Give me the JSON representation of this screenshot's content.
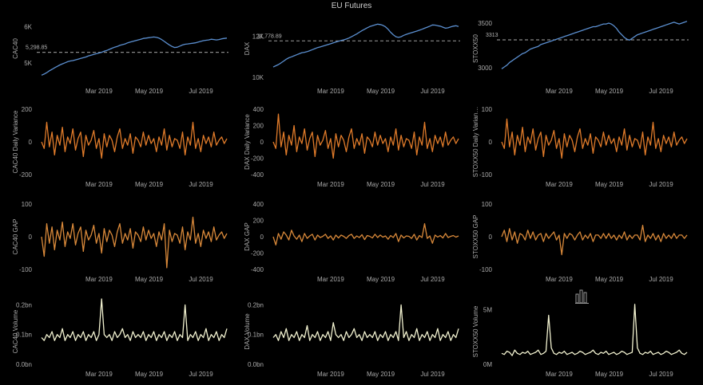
{
  "page": {
    "title": "EU Futures"
  },
  "colors": {
    "price": "#5b8fd0",
    "variance": "#e07b2a",
    "gap": "#d9893a",
    "volume": "#f2f2d0",
    "ref": "#8a8a8a"
  },
  "icons": {
    "toolbar": "bar-chart-icon"
  },
  "chart_data": [
    {
      "id": "cac40-price",
      "type": "line",
      "ylabel": "CAC40",
      "yticks": [
        "5K",
        "6K"
      ],
      "ytick_values": [
        5000,
        6000
      ],
      "ylim": [
        4500,
        6300
      ],
      "ref_line": 5298.85,
      "ref_label": "5,298.85",
      "xticks": [
        "Mar 2019",
        "May 2019",
        "Jul 2019"
      ],
      "x_start": "2019-01-02",
      "x_end": "2019-07-31",
      "series_color": "price",
      "values": [
        4670,
        4700,
        4740,
        4790,
        4830,
        4870,
        4910,
        4950,
        4980,
        5010,
        5040,
        5060,
        5070,
        5090,
        5110,
        5130,
        5150,
        5170,
        5200,
        5220,
        5240,
        5260,
        5280,
        5300,
        5330,
        5350,
        5380,
        5410,
        5440,
        5460,
        5490,
        5510,
        5530,
        5560,
        5580,
        5600,
        5620,
        5640,
        5660,
        5680,
        5690,
        5700,
        5710,
        5720,
        5710,
        5690,
        5650,
        5600,
        5550,
        5500,
        5460,
        5430,
        5440,
        5470,
        5500,
        5520,
        5530,
        5540,
        5550,
        5560,
        5580,
        5600,
        5620,
        5630,
        5640,
        5660,
        5650,
        5640,
        5650,
        5670,
        5680,
        5690
      ]
    },
    {
      "id": "dax-price",
      "type": "line",
      "ylabel": "DAX",
      "yticks": [
        "10K",
        "12K"
      ],
      "ytick_values": [
        10000,
        12000
      ],
      "ylim": [
        9800,
        13000
      ],
      "ref_line": 11778.89,
      "ref_label": "11,778.89",
      "xticks": [
        "Mar 2019",
        "May 2019",
        "Jul 2019"
      ],
      "x_start": "2019-01-02",
      "x_end": "2019-07-31",
      "series_color": "price",
      "values": [
        10500,
        10560,
        10620,
        10700,
        10790,
        10880,
        10950,
        11000,
        11050,
        11100,
        11150,
        11200,
        11220,
        11250,
        11300,
        11350,
        11400,
        11450,
        11480,
        11520,
        11560,
        11600,
        11640,
        11680,
        11720,
        11760,
        11800,
        11830,
        11870,
        11920,
        11980,
        12050,
        12120,
        12200,
        12280,
        12350,
        12420,
        12480,
        12520,
        12560,
        12600,
        12580,
        12540,
        12470,
        12350,
        12200,
        12080,
        11980,
        11950,
        11980,
        12050,
        12100,
        12140,
        12180,
        12220,
        12260,
        12300,
        12350,
        12400,
        12450,
        12500,
        12560,
        12550,
        12520,
        12500,
        12450,
        12400,
        12420,
        12460,
        12500,
        12520,
        12480
      ]
    },
    {
      "id": "stoxx50-price",
      "type": "line",
      "ylabel": "STOXX50",
      "yticks": [
        "3000",
        "3500"
      ],
      "ytick_values": [
        3000,
        3500
      ],
      "ylim": [
        2850,
        3580
      ],
      "ref_line": 3313,
      "ref_label": "3313",
      "xticks": [
        "Mar 2019",
        "May 2019",
        "Jul 2019"
      ],
      "x_start": "2019-01-02",
      "x_end": "2019-07-31",
      "series_color": "price",
      "values": [
        2990,
        3010,
        3030,
        3060,
        3080,
        3100,
        3120,
        3140,
        3160,
        3170,
        3190,
        3210,
        3220,
        3230,
        3240,
        3260,
        3270,
        3280,
        3290,
        3300,
        3310,
        3320,
        3330,
        3340,
        3350,
        3360,
        3370,
        3380,
        3390,
        3400,
        3410,
        3420,
        3430,
        3440,
        3450,
        3460,
        3460,
        3470,
        3480,
        3490,
        3490,
        3500,
        3490,
        3470,
        3440,
        3400,
        3370,
        3340,
        3320,
        3310,
        3330,
        3350,
        3370,
        3380,
        3390,
        3400,
        3410,
        3420,
        3430,
        3440,
        3450,
        3460,
        3470,
        3480,
        3490,
        3500,
        3510,
        3500,
        3490,
        3500,
        3510,
        3520
      ]
    },
    {
      "id": "cac40-variance",
      "type": "line",
      "ylabel": "CAC40 Daily Variance",
      "yticks": [
        "-200",
        "0",
        "200"
      ],
      "ytick_values": [
        -200,
        0,
        200
      ],
      "ylim": [
        -200,
        200
      ],
      "xticks": [
        "Mar 2019",
        "May 2019",
        "Jul 2019"
      ],
      "x_start": "2019-01-02",
      "x_end": "2019-07-31",
      "series_color": "variance",
      "values": [
        0,
        -40,
        120,
        -30,
        60,
        -80,
        40,
        -20,
        90,
        -60,
        30,
        -10,
        80,
        -50,
        20,
        60,
        -90,
        40,
        -20,
        10,
        70,
        -40,
        20,
        -100,
        50,
        -30,
        40,
        10,
        -60,
        30,
        80,
        -40,
        20,
        -20,
        50,
        -70,
        30,
        10,
        -30,
        60,
        -20,
        40,
        -10,
        20,
        -60,
        30,
        -20,
        80,
        -50,
        40,
        -30,
        20,
        10,
        -40,
        60,
        -80,
        30,
        -20,
        120,
        -40,
        20,
        -60,
        40,
        -10,
        30,
        -30,
        60,
        -20,
        10,
        30,
        -10,
        20
      ]
    },
    {
      "id": "dax-variance",
      "type": "line",
      "ylabel": "DAX Daily Variance",
      "yticks": [
        "-400",
        "-200",
        "0",
        "200",
        "400"
      ],
      "ytick_values": [
        -400,
        -200,
        0,
        200,
        400
      ],
      "ylim": [
        -400,
        400
      ],
      "xticks": [
        "Mar 2019",
        "May 2019",
        "Jul 2019"
      ],
      "x_start": "2019-01-02",
      "x_end": "2019-07-31",
      "series_color": "variance",
      "values": [
        0,
        -80,
        340,
        -60,
        120,
        -160,
        80,
        -40,
        200,
        -120,
        60,
        -20,
        160,
        -100,
        40,
        120,
        -180,
        80,
        -40,
        20,
        140,
        -80,
        40,
        -200,
        100,
        -60,
        80,
        20,
        -120,
        60,
        160,
        -80,
        40,
        -40,
        100,
        -140,
        60,
        20,
        -60,
        120,
        -40,
        80,
        -20,
        40,
        -120,
        60,
        -40,
        160,
        -100,
        80,
        -60,
        40,
        20,
        -80,
        120,
        -160,
        60,
        -40,
        240,
        -80,
        40,
        -120,
        80,
        -20,
        60,
        -60,
        120,
        -40,
        20,
        60,
        -20,
        40
      ]
    },
    {
      "id": "stoxx50-variance",
      "type": "line",
      "ylabel": "STOXX50 Daily Varian…",
      "yticks": [
        "-100",
        "0",
        "100"
      ],
      "ytick_values": [
        -100,
        0,
        100
      ],
      "ylim": [
        -100,
        100
      ],
      "xticks": [
        "Mar 2019",
        "May 2019",
        "Jul 2019"
      ],
      "x_start": "2019-01-02",
      "x_end": "2019-07-31",
      "series_color": "variance",
      "values": [
        0,
        -20,
        70,
        -15,
        30,
        -40,
        20,
        -10,
        45,
        -30,
        15,
        -5,
        40,
        -25,
        10,
        30,
        -45,
        20,
        -10,
        5,
        35,
        -20,
        10,
        -50,
        25,
        -15,
        20,
        5,
        -30,
        15,
        40,
        -20,
        10,
        -10,
        25,
        -35,
        15,
        5,
        -15,
        30,
        -10,
        20,
        -5,
        10,
        -30,
        15,
        -10,
        40,
        -25,
        20,
        -15,
        10,
        5,
        -20,
        30,
        -40,
        15,
        -10,
        60,
        -20,
        10,
        -30,
        20,
        -5,
        15,
        -15,
        30,
        -10,
        5,
        15,
        -5,
        10
      ]
    },
    {
      "id": "cac40-gap",
      "type": "line",
      "ylabel": "CAC40 GAP",
      "yticks": [
        "-100",
        "0",
        "100"
      ],
      "ytick_values": [
        -100,
        0,
        100
      ],
      "ylim": [
        -100,
        100
      ],
      "xticks": [
        "Mar 2019",
        "May 2019",
        "Jul 2019"
      ],
      "x_start": "2019-01-02",
      "x_end": "2019-07-31",
      "series_color": "gap",
      "values": [
        0,
        -60,
        40,
        -20,
        30,
        -40,
        20,
        -10,
        45,
        -30,
        15,
        -5,
        40,
        -25,
        10,
        30,
        -45,
        20,
        -10,
        5,
        35,
        -20,
        10,
        -50,
        25,
        -15,
        20,
        5,
        -30,
        15,
        40,
        -20,
        10,
        -10,
        25,
        -35,
        15,
        5,
        -15,
        30,
        -10,
        20,
        -5,
        10,
        -30,
        15,
        -10,
        40,
        -95,
        20,
        -15,
        10,
        5,
        -20,
        30,
        -40,
        15,
        -10,
        60,
        -20,
        10,
        -30,
        20,
        -5,
        15,
        -15,
        30,
        -10,
        5,
        15,
        -5,
        10
      ]
    },
    {
      "id": "dax-gap",
      "type": "line",
      "ylabel": "DAX GAP",
      "yticks": [
        "-400",
        "-200",
        "0",
        "200",
        "400"
      ],
      "ytick_values": [
        -400,
        -200,
        0,
        200,
        400
      ],
      "ylim": [
        -400,
        400
      ],
      "xticks": [
        "Mar 2019",
        "May 2019",
        "Jul 2019"
      ],
      "x_start": "2019-01-02",
      "x_end": "2019-07-31",
      "series_color": "gap",
      "values": [
        0,
        -100,
        40,
        -30,
        60,
        20,
        -40,
        80,
        10,
        -30,
        20,
        -60,
        40,
        -20,
        10,
        30,
        -40,
        20,
        -10,
        5,
        30,
        -20,
        10,
        -40,
        20,
        -15,
        20,
        5,
        -20,
        15,
        30,
        -20,
        10,
        -10,
        25,
        -35,
        15,
        5,
        -15,
        30,
        -10,
        20,
        -5,
        10,
        -30,
        15,
        -10,
        40,
        -60,
        20,
        -15,
        10,
        5,
        -20,
        30,
        -40,
        15,
        -10,
        160,
        -20,
        10,
        -80,
        20,
        -5,
        15,
        -15,
        40,
        -10,
        5,
        15,
        -5,
        10
      ]
    },
    {
      "id": "stoxx50-gap",
      "type": "line",
      "ylabel": "STOXX50 GAP",
      "yticks": [
        "-100",
        "0",
        "100"
      ],
      "ytick_values": [
        -100,
        0,
        100
      ],
      "ylim": [
        -100,
        100
      ],
      "xticks": [
        "Mar 2019",
        "May 2019",
        "Jul 2019"
      ],
      "x_start": "2019-01-02",
      "x_end": "2019-07-31",
      "series_color": "gap",
      "values": [
        0,
        20,
        -15,
        25,
        -10,
        15,
        -20,
        10,
        5,
        -10,
        20,
        -5,
        15,
        -10,
        5,
        10,
        -15,
        10,
        -5,
        5,
        15,
        -10,
        5,
        -55,
        10,
        -5,
        10,
        5,
        -10,
        5,
        15,
        -10,
        5,
        -5,
        10,
        -15,
        5,
        5,
        -5,
        10,
        -5,
        10,
        -5,
        5,
        -10,
        5,
        -5,
        15,
        -10,
        5,
        -5,
        5,
        5,
        -10,
        35,
        -15,
        5,
        -5,
        10,
        -10,
        5,
        -15,
        10,
        -5,
        5,
        -5,
        10,
        -5,
        5,
        5,
        -5,
        5
      ]
    },
    {
      "id": "cac40-volume",
      "type": "line",
      "ylabel": "CAC40 Volume",
      "yticks": [
        "0.0bn",
        "0.1bn",
        "0.2bn"
      ],
      "ytick_values": [
        0,
        0.1,
        0.2
      ],
      "ylim": [
        0,
        0.22
      ],
      "xticks": [
        "Mar 2019",
        "May 2019",
        "Jul 2019"
      ],
      "x_start": "2019-01-02",
      "x_end": "2019-07-31",
      "series_color": "volume",
      "values": [
        0.09,
        0.08,
        0.1,
        0.09,
        0.11,
        0.08,
        0.1,
        0.09,
        0.12,
        0.08,
        0.1,
        0.09,
        0.11,
        0.08,
        0.1,
        0.09,
        0.11,
        0.08,
        0.1,
        0.09,
        0.11,
        0.08,
        0.1,
        0.22,
        0.1,
        0.09,
        0.1,
        0.08,
        0.11,
        0.09,
        0.1,
        0.12,
        0.09,
        0.1,
        0.08,
        0.11,
        0.09,
        0.1,
        0.09,
        0.11,
        0.08,
        0.1,
        0.09,
        0.11,
        0.08,
        0.1,
        0.09,
        0.11,
        0.08,
        0.1,
        0.09,
        0.11,
        0.08,
        0.1,
        0.09,
        0.2,
        0.08,
        0.1,
        0.09,
        0.11,
        0.08,
        0.1,
        0.09,
        0.12,
        0.08,
        0.1,
        0.09,
        0.11,
        0.08,
        0.1,
        0.09,
        0.12
      ]
    },
    {
      "id": "dax-volume",
      "type": "line",
      "ylabel": "DAX Volume",
      "yticks": [
        "0.0bn",
        "0.1bn",
        "0.2bn"
      ],
      "ytick_values": [
        0,
        0.1,
        0.2
      ],
      "ylim": [
        0,
        0.22
      ],
      "xticks": [
        "Mar 2019",
        "May 2019",
        "Jul 2019"
      ],
      "x_start": "2019-01-02",
      "x_end": "2019-07-31",
      "series_color": "volume",
      "values": [
        0.09,
        0.1,
        0.08,
        0.11,
        0.09,
        0.12,
        0.08,
        0.1,
        0.09,
        0.11,
        0.08,
        0.1,
        0.09,
        0.13,
        0.08,
        0.1,
        0.09,
        0.11,
        0.08,
        0.1,
        0.09,
        0.11,
        0.08,
        0.14,
        0.1,
        0.09,
        0.1,
        0.08,
        0.11,
        0.09,
        0.1,
        0.12,
        0.09,
        0.1,
        0.08,
        0.11,
        0.09,
        0.1,
        0.09,
        0.11,
        0.08,
        0.1,
        0.09,
        0.11,
        0.08,
        0.1,
        0.09,
        0.11,
        0.08,
        0.2,
        0.09,
        0.11,
        0.08,
        0.1,
        0.09,
        0.12,
        0.08,
        0.1,
        0.09,
        0.11,
        0.08,
        0.1,
        0.09,
        0.12,
        0.08,
        0.1,
        0.09,
        0.11,
        0.08,
        0.1,
        0.09,
        0.12
      ]
    },
    {
      "id": "stoxx50-volume",
      "type": "line",
      "ylabel": "STOXX50 Volume",
      "yticks": [
        "0M",
        "5M"
      ],
      "ytick_values": [
        0,
        5000000
      ],
      "ylim": [
        0,
        6000000
      ],
      "xticks": [
        "Mar 2019",
        "May 2019",
        "Jul 2019"
      ],
      "x_start": "2019-01-02",
      "x_end": "2019-07-31",
      "series_color": "volume",
      "values": [
        1000000,
        900000,
        1200000,
        1100000,
        800000,
        1300000,
        1000000,
        900000,
        1100000,
        1000000,
        1200000,
        900000,
        1000000,
        1100000,
        1300000,
        900000,
        1000000,
        1200000,
        4500000,
        1500000,
        1000000,
        900000,
        1100000,
        1000000,
        1200000,
        900000,
        1000000,
        1100000,
        900000,
        1000000,
        1200000,
        1100000,
        900000,
        1000000,
        1100000,
        1300000,
        1000000,
        900000,
        1100000,
        1000000,
        1200000,
        900000,
        1000000,
        1100000,
        900000,
        1000000,
        1200000,
        1100000,
        900000,
        1000000,
        1100000,
        5500000,
        1500000,
        1000000,
        900000,
        1100000,
        1000000,
        1200000,
        900000,
        1000000,
        1100000,
        900000,
        1000000,
        1200000,
        1100000,
        900000,
        1000000,
        1100000,
        1300000,
        1000000,
        900000,
        1100000
      ]
    }
  ]
}
